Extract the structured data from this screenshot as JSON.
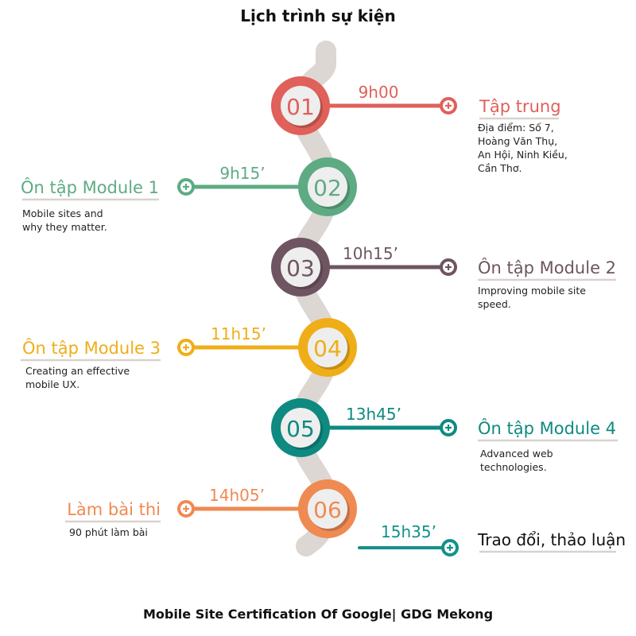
{
  "title": "Lịch trình sự kiện",
  "footer": "Mobile Site Certification Of Google| GDG Mekong",
  "colors": {
    "path": "#dcd7d3",
    "c01": "#e0605a",
    "c02": "#5eab83",
    "c03": "#6e5561",
    "c04": "#efae18",
    "c05": "#0e8a80",
    "c06": "#ef8a52",
    "final": "#13908c",
    "desc": "#222222",
    "underline": "#d8d2ce"
  },
  "events": [
    {
      "num": "01",
      "time": "9h00",
      "title": "Tập trung",
      "desc": [
        "Địa điểm: Số 7,",
        "Hoàng Văn Thụ,",
        "An Hội, Ninh Kiều,",
        "Cần Thơ."
      ]
    },
    {
      "num": "02",
      "time": "9h15’",
      "title": "Ôn tập Module 1",
      "desc": [
        "Mobile sites and",
        "why they matter."
      ]
    },
    {
      "num": "03",
      "time": "10h15’",
      "title": "Ôn tập Module 2",
      "desc": [
        "Improving mobile site",
        "speed."
      ]
    },
    {
      "num": "04",
      "time": "11h15’",
      "title": "Ôn tập Module 3",
      "desc": [
        "Creating an effective",
        "mobile UX."
      ]
    },
    {
      "num": "05",
      "time": "13h45’",
      "title": "Ôn tập Module 4",
      "desc": [
        "Advanced web",
        "technologies."
      ]
    },
    {
      "num": "06",
      "time": "14h05’",
      "title": "Làm bài thi",
      "desc": [
        "90 phút làm bài"
      ]
    }
  ],
  "final": {
    "time": "15h35’",
    "title": "Trao đổi, thảo luận"
  }
}
